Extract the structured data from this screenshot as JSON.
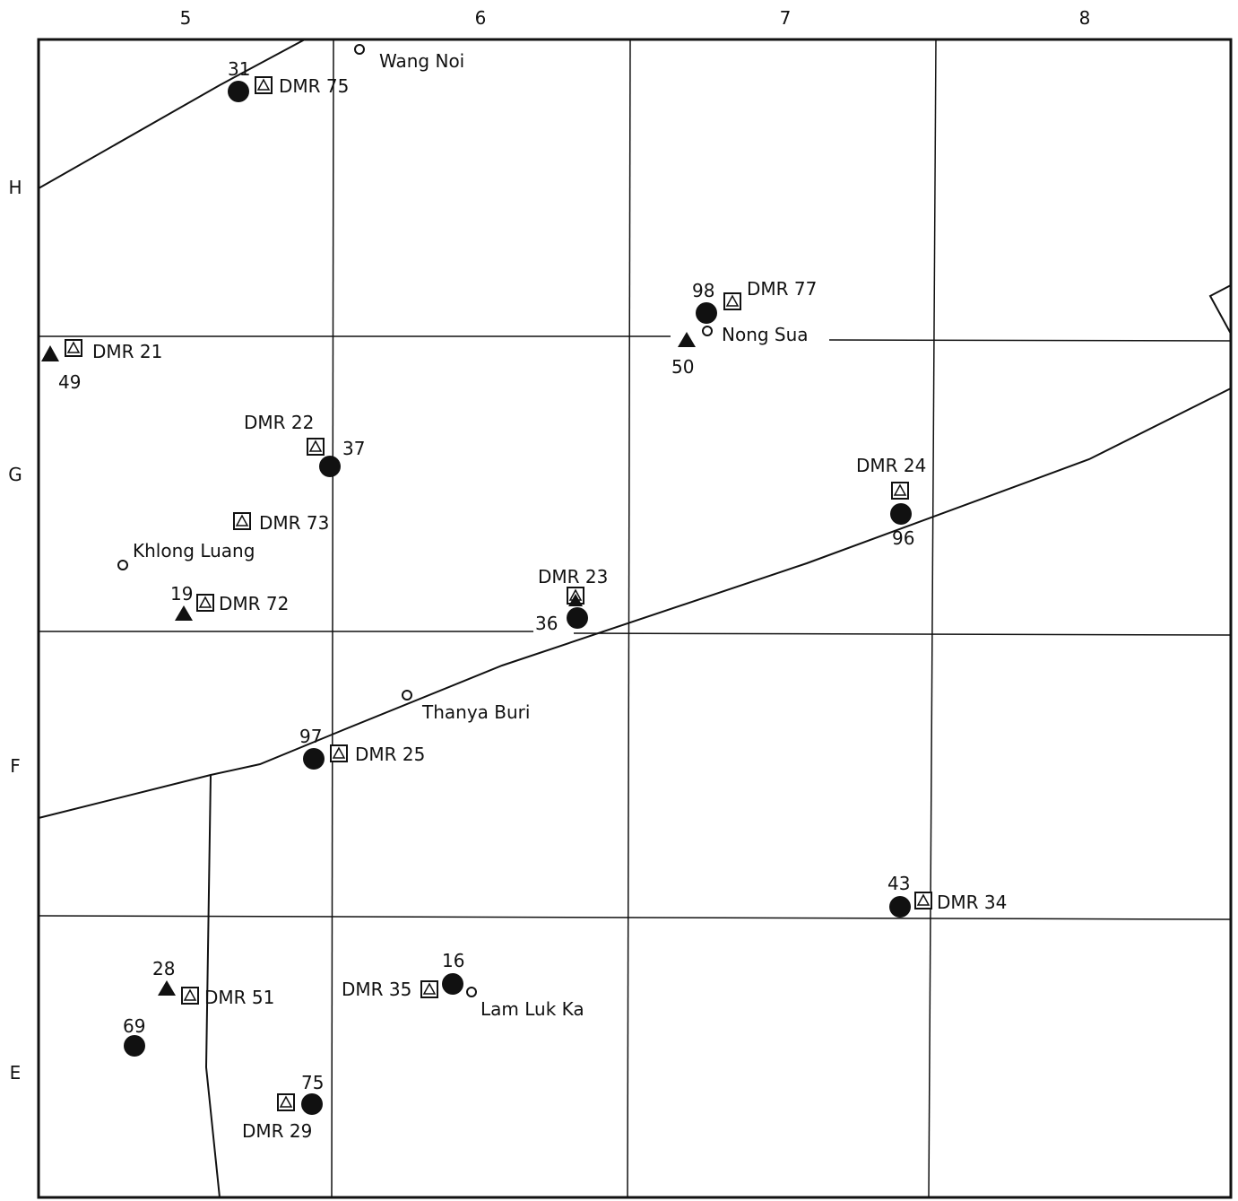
{
  "grid": {
    "columns": [
      "5",
      "6",
      "7",
      "8"
    ],
    "rows": [
      "H",
      "G",
      "F",
      "E"
    ]
  },
  "places": {
    "wang_noi": "Wang Noi",
    "nong_sua": "Nong Sua",
    "khlong_luang": "Khlong Luang",
    "thanya_buri": "Thanya Buri",
    "lam_luk_ka": "Lam Luk Ka"
  },
  "stations": {
    "dmr75": "DMR 75",
    "dmr77": "DMR 77",
    "dmr21": "DMR 21",
    "dmr22": "DMR 22",
    "dmr24": "DMR 24",
    "dmr73": "DMR 73",
    "dmr23": "DMR 23",
    "dmr72": "DMR 72",
    "dmr25": "DMR 25",
    "dmr34": "DMR 34",
    "dmr51": "DMR 51",
    "dmr35": "DMR 35",
    "dmr29": "DMR 29"
  },
  "wells": {
    "w31": "31",
    "w98": "98",
    "w50": "50",
    "w49": "49",
    "w37": "37",
    "w96": "96",
    "w19": "19",
    "w36": "36",
    "w97": "97",
    "w43": "43",
    "w28": "28",
    "w16": "16",
    "w69": "69",
    "w75": "75"
  }
}
